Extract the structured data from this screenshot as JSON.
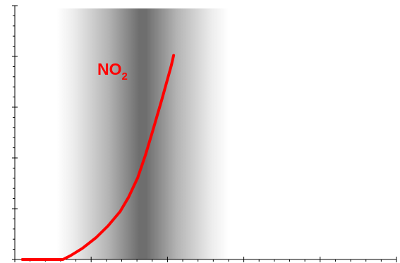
{
  "chart_data": {
    "type": "line",
    "title": "",
    "xlabel": "",
    "ylabel": "",
    "xlim": [
      0,
      100
    ],
    "ylim": [
      0,
      100
    ],
    "grid": false,
    "x_minor_ticks_per_major": 5,
    "y_minor_ticks_per_major": 5,
    "x_major_ticks": [
      0,
      20,
      40,
      60,
      80,
      100
    ],
    "y_major_ticks": [
      0,
      20,
      40,
      60,
      80,
      100
    ],
    "highlight_band": {
      "x_start": 11,
      "x_center": 33,
      "x_end": 56,
      "style": "grey vertical gradient, darkest at center"
    },
    "series": [
      {
        "name": "NO2",
        "color": "#ff0000",
        "x": [
          2,
          12.6,
          14.6,
          17.7,
          21.3,
          24.4,
          27.6,
          29.8,
          32.2,
          34.2,
          36.1,
          38.6,
          41.0,
          41.6
        ],
        "y": [
          0,
          0,
          1.5,
          4.4,
          8.6,
          13.2,
          18.9,
          24.5,
          32.2,
          41.0,
          50.5,
          63.4,
          76.4,
          80.4
        ]
      }
    ],
    "annotations": [
      {
        "text_main": "NO",
        "text_sub": "2",
        "color": "#ff0000"
      }
    ]
  }
}
